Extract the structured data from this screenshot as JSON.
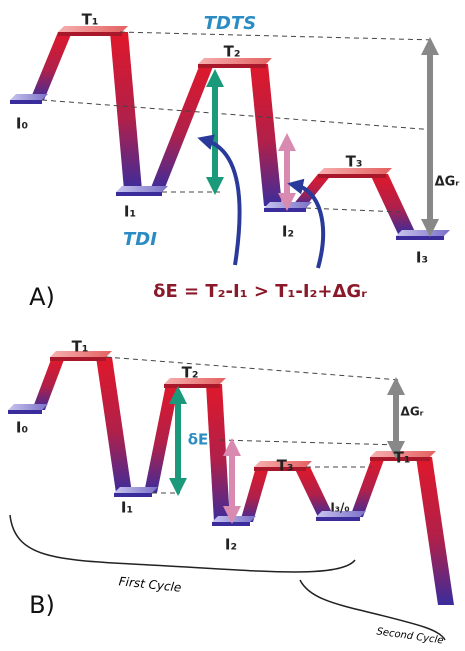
{
  "panel_a": {
    "panel_label": "A)",
    "nodes": [
      "I₀",
      "T₁",
      "I₁",
      "T₂",
      "I₂",
      "T₃",
      "I₃"
    ],
    "tdts": "TDTS",
    "tdi": "TDI",
    "delta_g": "ΔGᵣ",
    "equation": "δE = T₂-I₁ > T₁-I₂+ΔGᵣ"
  },
  "panel_b": {
    "panel_label": "B)",
    "nodes": [
      "I₀",
      "T₁",
      "I₁",
      "T₂",
      "I₂",
      "T₃",
      "I₃/₀",
      "T₁"
    ],
    "delta_e": "δE",
    "delta_g": "ΔGᵣ",
    "first_cycle": "First Cycle",
    "second_cycle": "Second Cycle"
  }
}
